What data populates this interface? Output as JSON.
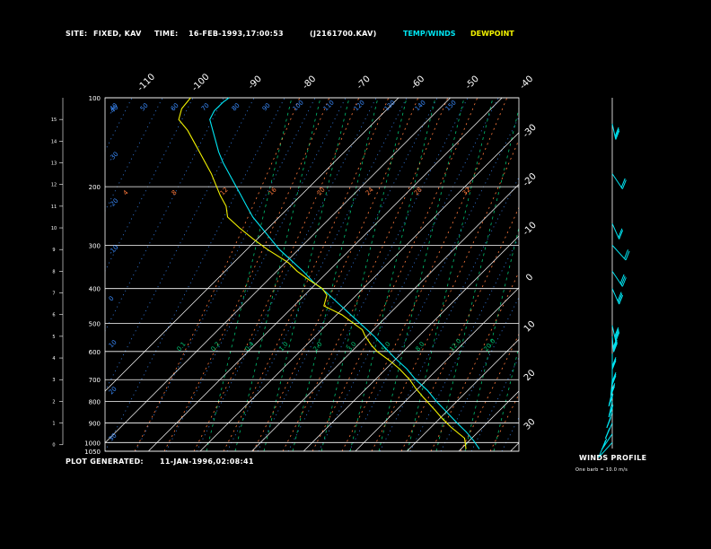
{
  "header": {
    "site_label": "SITE:",
    "site_value": "FIXED, KAV",
    "time_label": "TIME:",
    "time_value": "16-FEB-1993,17:00:53",
    "id_value": "(J2161700.KAV)"
  },
  "footer": {
    "generated_label": "PLOT GENERATED:",
    "generated_value": "11-JAN-1996,02:08:41"
  },
  "winds": {
    "title": "WINDS PROFILE",
    "note": "One barb = 10.0 m/s"
  },
  "colors": {
    "background": "#000000",
    "grid": "#ffffff",
    "temperature": "#00e5f2",
    "dewpoint": "#f2f200",
    "dry_adiabat": "#3a8cff",
    "moist_adiabat": "#ff7a3c",
    "mixing_ratio": "#00c070",
    "text": "#ffffff"
  },
  "chart_data": {
    "type": "line",
    "title": "",
    "legend": [
      {
        "name": "TEMP/WINDS",
        "color": "#00e5f2"
      },
      {
        "name": "DEWPOINT",
        "color": "#f2f200"
      }
    ],
    "pressure_levels": [
      {
        "label": "100",
        "km": 16.0
      },
      {
        "label": "200",
        "km": 11.9
      },
      {
        "label": "300",
        "km": 9.2
      },
      {
        "label": "400",
        "km": 7.2
      },
      {
        "label": "500",
        "km": 5.6
      },
      {
        "label": "600",
        "km": 4.3
      },
      {
        "label": "700",
        "km": 3.0
      },
      {
        "label": "800",
        "km": 2.0
      },
      {
        "label": "900",
        "km": 1.0
      },
      {
        "label": "1000",
        "km": 0.1
      },
      {
        "label": "1050",
        "km": -0.3
      }
    ],
    "height_ticks": [
      "0",
      "1",
      "2",
      "3",
      "4",
      "5",
      "6",
      "7",
      "8",
      "9",
      "10",
      "11",
      "12",
      "13",
      "14",
      "15"
    ],
    "height_range_km": [
      -0.3,
      16.0
    ],
    "top_temp_labels": [
      "-110",
      "-100",
      "-90",
      "-80",
      "-70",
      "-60",
      "-50",
      "-40"
    ],
    "right_temp_labels": [
      "-30",
      "-20",
      "-10",
      "0",
      "10",
      "20",
      "30"
    ],
    "temp_range_at_100mb": [
      -120,
      -40
    ],
    "dry_adiabat_labels": [
      "40",
      "50",
      "60",
      "70",
      "80",
      "90",
      "100",
      "110",
      "120",
      "130",
      "140",
      "150"
    ],
    "moist_adiabat_labels": [
      "4",
      "8",
      "12",
      "16",
      "20",
      "24",
      "28",
      "32"
    ],
    "mixing_ratio_labels": [
      "0.1",
      "0.2",
      "0.4",
      "1.0",
      "2.0",
      "3.0",
      "5.0",
      "8.0",
      "12.0",
      "20.0"
    ],
    "left_adiabat_labels": [
      "30",
      "20",
      "10",
      "0",
      "-10",
      "-20",
      "-30",
      "-40"
    ],
    "temperature_profile": [
      {
        "km": -0.2,
        "t": 8.5
      },
      {
        "km": 0.2,
        "t": 6.5
      },
      {
        "km": 0.6,
        "t": 4.0
      },
      {
        "km": 1.0,
        "t": 1.0
      },
      {
        "km": 1.5,
        "t": -2.5
      },
      {
        "km": 2.0,
        "t": -6.0
      },
      {
        "km": 2.5,
        "t": -9.0
      },
      {
        "km": 3.0,
        "t": -13.0
      },
      {
        "km": 3.5,
        "t": -16.0
      },
      {
        "km": 4.0,
        "t": -20.0
      },
      {
        "km": 4.5,
        "t": -23.5
      },
      {
        "km": 5.0,
        "t": -27.0
      },
      {
        "km": 5.5,
        "t": -31.0
      },
      {
        "km": 6.0,
        "t": -35.0
      },
      {
        "km": 6.5,
        "t": -39.0
      },
      {
        "km": 7.0,
        "t": -43.0
      },
      {
        "km": 7.5,
        "t": -47.5
      },
      {
        "km": 8.0,
        "t": -51.0
      },
      {
        "km": 8.5,
        "t": -55.0
      },
      {
        "km": 9.0,
        "t": -59.0
      },
      {
        "km": 9.5,
        "t": -62.0
      },
      {
        "km": 10.0,
        "t": -65.0
      },
      {
        "km": 10.5,
        "t": -68.0
      },
      {
        "km": 11.0,
        "t": -70.0
      },
      {
        "km": 11.5,
        "t": -72.0
      },
      {
        "km": 12.0,
        "t": -74.0
      },
      {
        "km": 12.5,
        "t": -76.0
      },
      {
        "km": 13.0,
        "t": -78.0
      },
      {
        "km": 13.5,
        "t": -79.5
      },
      {
        "km": 14.0,
        "t": -80.5
      },
      {
        "km": 14.5,
        "t": -81.5
      },
      {
        "km": 15.0,
        "t": -82.5
      },
      {
        "km": 15.4,
        "t": -81.0
      },
      {
        "km": 15.8,
        "t": -78.0
      },
      {
        "km": 16.0,
        "t": -76.0
      }
    ],
    "dewpoint_profile": [
      {
        "km": -0.2,
        "t": 4.0
      },
      {
        "km": 0.3,
        "t": 3.5
      },
      {
        "km": 0.8,
        "t": -1.0
      },
      {
        "km": 1.2,
        "t": -4.0
      },
      {
        "km": 1.6,
        "t": -6.5
      },
      {
        "km": 2.2,
        "t": -10.5
      },
      {
        "km": 2.6,
        "t": -13.0
      },
      {
        "km": 3.0,
        "t": -15.0
      },
      {
        "km": 3.5,
        "t": -18.5
      },
      {
        "km": 3.9,
        "t": -22.0
      },
      {
        "km": 4.3,
        "t": -26.0
      },
      {
        "km": 4.6,
        "t": -28.0
      },
      {
        "km": 5.0,
        "t": -30.0
      },
      {
        "km": 5.3,
        "t": -31.0
      },
      {
        "km": 5.6,
        "t": -34.0
      },
      {
        "km": 6.0,
        "t": -38.0
      },
      {
        "km": 6.4,
        "t": -44.0
      },
      {
        "km": 6.9,
        "t": -43.0
      },
      {
        "km": 7.2,
        "t": -44.5
      },
      {
        "km": 7.6,
        "t": -49.0
      },
      {
        "km": 8.0,
        "t": -53.0
      },
      {
        "km": 8.4,
        "t": -56.0
      },
      {
        "km": 9.0,
        "t": -63.0
      },
      {
        "km": 9.5,
        "t": -68.0
      },
      {
        "km": 10.0,
        "t": -72.5
      },
      {
        "km": 10.5,
        "t": -76.5
      },
      {
        "km": 11.0,
        "t": -77.0
      },
      {
        "km": 11.5,
        "t": -79.0
      },
      {
        "km": 12.0,
        "t": -80.5
      },
      {
        "km": 12.5,
        "t": -82.0
      },
      {
        "km": 13.0,
        "t": -84.0
      },
      {
        "km": 13.5,
        "t": -86.0
      },
      {
        "km": 14.0,
        "t": -88.0
      },
      {
        "km": 14.5,
        "t": -90.0
      },
      {
        "km": 15.0,
        "t": -93.0
      },
      {
        "km": 15.5,
        "t": -92.0
      },
      {
        "km": 16.0,
        "t": -89.0
      }
    ],
    "wind_barbs": [
      {
        "km": 0.1,
        "dir": 250,
        "speed": 10
      },
      {
        "km": 0.5,
        "dir": 255,
        "speed": 15
      },
      {
        "km": 1.0,
        "dir": 260,
        "speed": 20
      },
      {
        "km": 1.5,
        "dir": 262,
        "speed": 22
      },
      {
        "km": 2.0,
        "dir": 265,
        "speed": 25
      },
      {
        "km": 2.5,
        "dir": 265,
        "speed": 28
      },
      {
        "km": 3.0,
        "dir": 268,
        "speed": 30
      },
      {
        "km": 3.5,
        "dir": 270,
        "speed": 32
      },
      {
        "km": 4.2,
        "dir": 270,
        "speed": 34
      },
      {
        "km": 5.0,
        "dir": 272,
        "speed": 36
      },
      {
        "km": 5.5,
        "dir": 275,
        "speed": 35
      },
      {
        "km": 7.2,
        "dir": 280,
        "speed": 30
      },
      {
        "km": 8.0,
        "dir": 285,
        "speed": 25
      },
      {
        "km": 9.2,
        "dir": 290,
        "speed": 20
      },
      {
        "km": 10.2,
        "dir": 280,
        "speed": 15
      },
      {
        "km": 12.5,
        "dir": 285,
        "speed": 20
      },
      {
        "km": 14.8,
        "dir": 275,
        "speed": 25
      }
    ]
  }
}
